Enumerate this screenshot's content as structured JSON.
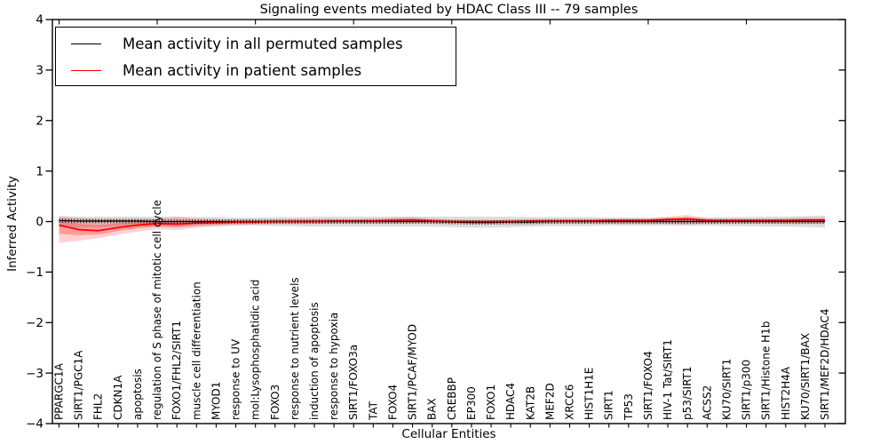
{
  "chart": {
    "title": "Signaling events mediated by HDAC Class III -- 79 samples",
    "xlabel": "Cellular Entities",
    "ylabel": "Inferred Activity",
    "legend": [
      {
        "label": "Mean activity in all permuted samples",
        "color": "#000000"
      },
      {
        "label": "Mean activity in patient samples",
        "color": "#ff0000"
      }
    ]
  },
  "chart_data": {
    "type": "line",
    "title": "Signaling events mediated by HDAC Class III -- 79 samples",
    "xlabel": "Cellular Entities",
    "ylabel": "Inferred Activity",
    "ylim": [
      -4,
      4
    ],
    "yticks": [
      4,
      3,
      2,
      1,
      0,
      -1,
      -2,
      -3,
      -4
    ],
    "ytick_labels": [
      "4",
      "3",
      "2",
      "1",
      "0",
      "−1",
      "−2",
      "−3",
      "−4"
    ],
    "grid": false,
    "legend_position": "upper left",
    "categories": [
      "PPARGC1A",
      "SIRT1/PGC1A",
      "FHL2",
      "CDKN1A",
      "apoptosis",
      "regulation of S phase of mitotic cell cycle",
      "FOXO1/FHL2/SIRT1",
      "muscle cell differentiation",
      "MYOD1",
      "response to UV",
      "mol:Lysophosphatidic acid",
      "FOXO3",
      "response to nutrient levels",
      "induction of apoptosis",
      "response to hypoxia",
      "SIRT1/FOXO3a",
      "TAT",
      "FOXO4",
      "SIRT1/PCAF/MYOD",
      "BAX",
      "CREBBP",
      "EP300",
      "FOXO1",
      "HDAC4",
      "KAT2B",
      "MEF2D",
      "XRCC6",
      "HIST1H1E",
      "SIRT1",
      "TP53",
      "SIRT1/FOXO4",
      "HIV-1 Tat/SIRT1",
      "p53/SIRT1",
      "ACSS2",
      "KU70/SIRT1",
      "SIRT1/p300",
      "SIRT1/Histone H1b",
      "HIST2H4A",
      "KU70/SIRT1/BAX",
      "SIRT1/MEF2D/HDAC4"
    ],
    "series": [
      {
        "name": "Mean activity in all permuted samples",
        "color": "#000000",
        "band_color": "#000000",
        "values": [
          0.02,
          0.01,
          0.01,
          0.01,
          0.01,
          0,
          0,
          0,
          0,
          0,
          0,
          0,
          0,
          0,
          0,
          0,
          0,
          0,
          0,
          0,
          -0.01,
          -0.02,
          -0.02,
          -0.01,
          -0.01,
          0,
          0,
          0,
          0,
          0,
          0,
          0,
          0,
          0,
          0,
          0,
          0,
          0,
          0,
          0
        ],
        "band_upper": [
          0.11,
          0.1,
          0.1,
          0.1,
          0.1,
          0.1,
          0.1,
          0.09,
          0.09,
          0.08,
          0.08,
          0.09,
          0.09,
          0.1,
          0.1,
          0.1,
          0.1,
          0.1,
          0.1,
          0.1,
          0.1,
          0.1,
          0.1,
          0.1,
          0.09,
          0.09,
          0.09,
          0.09,
          0.08,
          0.08,
          0.08,
          0.08,
          0.08,
          0.08,
          0.09,
          0.09,
          0.1,
          0.1,
          0.11,
          0.12
        ],
        "band_lower": [
          -0.12,
          -0.12,
          -0.11,
          -0.1,
          -0.1,
          -0.1,
          -0.1,
          -0.09,
          -0.09,
          -0.08,
          -0.08,
          -0.09,
          -0.09,
          -0.1,
          -0.1,
          -0.1,
          -0.1,
          -0.1,
          -0.1,
          -0.1,
          -0.11,
          -0.12,
          -0.12,
          -0.11,
          -0.1,
          -0.09,
          -0.09,
          -0.09,
          -0.08,
          -0.08,
          -0.08,
          -0.08,
          -0.08,
          -0.08,
          -0.09,
          -0.09,
          -0.1,
          -0.1,
          -0.11,
          -0.12
        ]
      },
      {
        "name": "Mean activity in patient samples",
        "color": "#ff0000",
        "band_color": "#ff0000",
        "values": [
          -0.07,
          -0.16,
          -0.18,
          -0.12,
          -0.07,
          -0.04,
          -0.05,
          -0.03,
          -0.02,
          -0.01,
          -0.01,
          0,
          0,
          0,
          0.01,
          0.01,
          0.01,
          0.02,
          0.03,
          0.01,
          0,
          0,
          0,
          0,
          0.01,
          0.01,
          0.01,
          0.01,
          0.02,
          0.02,
          0.02,
          0.04,
          0.05,
          0.02,
          0.02,
          0.02,
          0.02,
          0.02,
          0.03,
          0.03
        ],
        "band_upper": [
          0.1,
          0.07,
          0.05,
          0.05,
          0.05,
          0.06,
          0.09,
          0.06,
          0.05,
          0.04,
          0.04,
          0.04,
          0.05,
          0.05,
          0.05,
          0.05,
          0.06,
          0.08,
          0.09,
          0.06,
          0.04,
          0.04,
          0.04,
          0.04,
          0.05,
          0.05,
          0.05,
          0.05,
          0.06,
          0.06,
          0.06,
          0.1,
          0.13,
          0.07,
          0.06,
          0.06,
          0.06,
          0.07,
          0.08,
          0.08
        ],
        "band_lower": [
          -0.42,
          -0.38,
          -0.33,
          -0.26,
          -0.2,
          -0.15,
          -0.17,
          -0.12,
          -0.09,
          -0.07,
          -0.06,
          -0.05,
          -0.05,
          -0.05,
          -0.04,
          -0.04,
          -0.04,
          -0.04,
          -0.04,
          -0.04,
          -0.04,
          -0.04,
          -0.04,
          -0.04,
          -0.04,
          -0.04,
          -0.04,
          -0.04,
          -0.04,
          -0.04,
          -0.04,
          -0.05,
          -0.06,
          -0.04,
          -0.04,
          -0.04,
          -0.04,
          -0.05,
          -0.05,
          -0.05
        ]
      }
    ]
  }
}
